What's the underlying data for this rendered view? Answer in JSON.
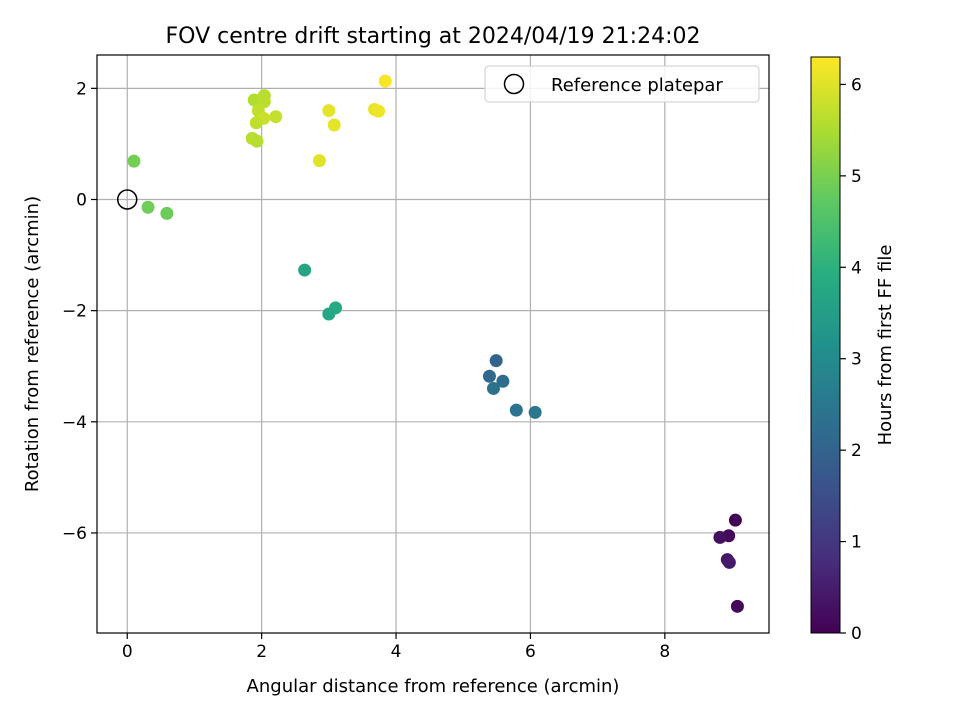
{
  "chart_data": {
    "type": "scatter",
    "title": "FOV centre drift starting at 2024/04/19 21:24:02",
    "xlabel": "Angular distance from reference (arcmin)",
    "ylabel": "Rotation from reference (arcmin)",
    "xlim": [
      -0.45,
      9.55
    ],
    "ylim": [
      -7.8,
      2.6
    ],
    "xticks": [
      0,
      2,
      4,
      6,
      8
    ],
    "yticks": [
      2,
      0,
      -2,
      -4,
      -6
    ],
    "xtick_labels": [
      "0",
      "2",
      "4",
      "6",
      "8"
    ],
    "ytick_labels": [
      "2",
      "0",
      "−2",
      "−4",
      "−6"
    ],
    "grid": true,
    "legend": {
      "position": "top-right",
      "entries": [
        {
          "label": "Reference platepar",
          "marker": "open-circle"
        }
      ]
    },
    "reference_point": {
      "x": 0,
      "y": 0
    },
    "colorbar": {
      "label": "Hours from first FF file",
      "min": 0,
      "max": 6.3,
      "ticks": [
        0,
        1,
        2,
        3,
        4,
        5,
        6
      ],
      "tick_labels": [
        "0",
        "1",
        "2",
        "3",
        "4",
        "5",
        "6"
      ],
      "colormap": "viridis",
      "color_stops": [
        "#440154",
        "#472d7b",
        "#3b528b",
        "#2c728e",
        "#21918c",
        "#28ae80",
        "#5ec962",
        "#addc30",
        "#fde725"
      ]
    },
    "points": [
      {
        "x": 9.05,
        "y": -5.77,
        "c": 0.05
      },
      {
        "x": 8.95,
        "y": -6.05,
        "c": 0.15
      },
      {
        "x": 8.82,
        "y": -6.08,
        "c": 0.25
      },
      {
        "x": 8.93,
        "y": -6.48,
        "c": 0.35
      },
      {
        "x": 8.96,
        "y": -6.53,
        "c": 0.45
      },
      {
        "x": 9.08,
        "y": -7.32,
        "c": 0.1
      },
      {
        "x": 5.49,
        "y": -2.9,
        "c": 2.05
      },
      {
        "x": 5.39,
        "y": -3.18,
        "c": 2.15
      },
      {
        "x": 5.59,
        "y": -3.27,
        "c": 2.25
      },
      {
        "x": 5.45,
        "y": -3.4,
        "c": 2.35
      },
      {
        "x": 5.79,
        "y": -3.79,
        "c": 2.4
      },
      {
        "x": 6.07,
        "y": -3.83,
        "c": 2.5
      },
      {
        "x": 2.64,
        "y": -1.27,
        "c": 3.7
      },
      {
        "x": 3.1,
        "y": -1.95,
        "c": 3.8
      },
      {
        "x": 3.0,
        "y": -2.06,
        "c": 3.75
      },
      {
        "x": 0.59,
        "y": -0.25,
        "c": 4.85
      },
      {
        "x": 0.31,
        "y": -0.14,
        "c": 4.9
      },
      {
        "x": 0.1,
        "y": 0.69,
        "c": 4.95
      },
      {
        "x": 1.89,
        "y": 1.79,
        "c": 5.55
      },
      {
        "x": 2.04,
        "y": 1.87,
        "c": 5.6
      },
      {
        "x": 2.04,
        "y": 1.76,
        "c": 5.65
      },
      {
        "x": 1.95,
        "y": 1.6,
        "c": 5.7
      },
      {
        "x": 2.21,
        "y": 1.49,
        "c": 5.75
      },
      {
        "x": 2.03,
        "y": 1.46,
        "c": 5.8
      },
      {
        "x": 1.92,
        "y": 1.38,
        "c": 5.7
      },
      {
        "x": 1.86,
        "y": 1.1,
        "c": 5.65
      },
      {
        "x": 1.93,
        "y": 1.05,
        "c": 5.6
      },
      {
        "x": 2.86,
        "y": 0.7,
        "c": 6.0
      },
      {
        "x": 3.0,
        "y": 1.6,
        "c": 6.05
      },
      {
        "x": 3.08,
        "y": 1.34,
        "c": 6.05
      },
      {
        "x": 3.68,
        "y": 1.62,
        "c": 6.1
      },
      {
        "x": 3.74,
        "y": 1.59,
        "c": 6.15
      },
      {
        "x": 3.84,
        "y": 2.13,
        "c": 6.25
      }
    ]
  }
}
